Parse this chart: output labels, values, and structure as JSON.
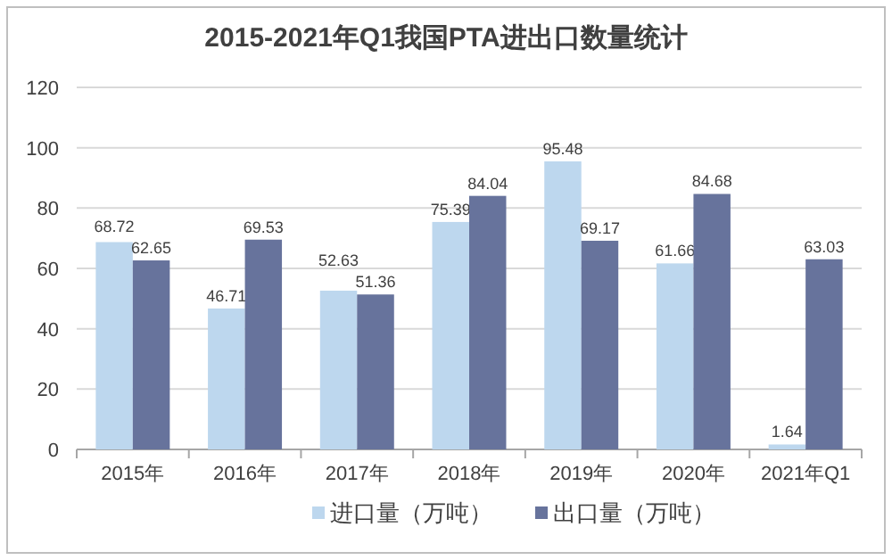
{
  "chart_data": {
    "type": "bar",
    "title": "2015-2021年Q1我国PTA进出口数量统计",
    "categories": [
      "2015年",
      "2016年",
      "2017年",
      "2018年",
      "2019年",
      "2020年",
      "2021年Q1"
    ],
    "series": [
      {
        "name": "进口量（万吨）",
        "color": "#bdd7ee",
        "values": [
          68.72,
          46.71,
          52.63,
          75.39,
          95.48,
          61.66,
          1.64
        ]
      },
      {
        "name": "出口量（万吨）",
        "color": "#67739c",
        "values": [
          62.65,
          69.53,
          51.36,
          84.04,
          69.17,
          84.68,
          63.03
        ]
      }
    ],
    "ylim": [
      0,
      120
    ],
    "yticks": [
      0,
      20,
      40,
      60,
      80,
      100,
      120
    ],
    "grid": "y",
    "legend": "bottom",
    "data_labels": true
  }
}
